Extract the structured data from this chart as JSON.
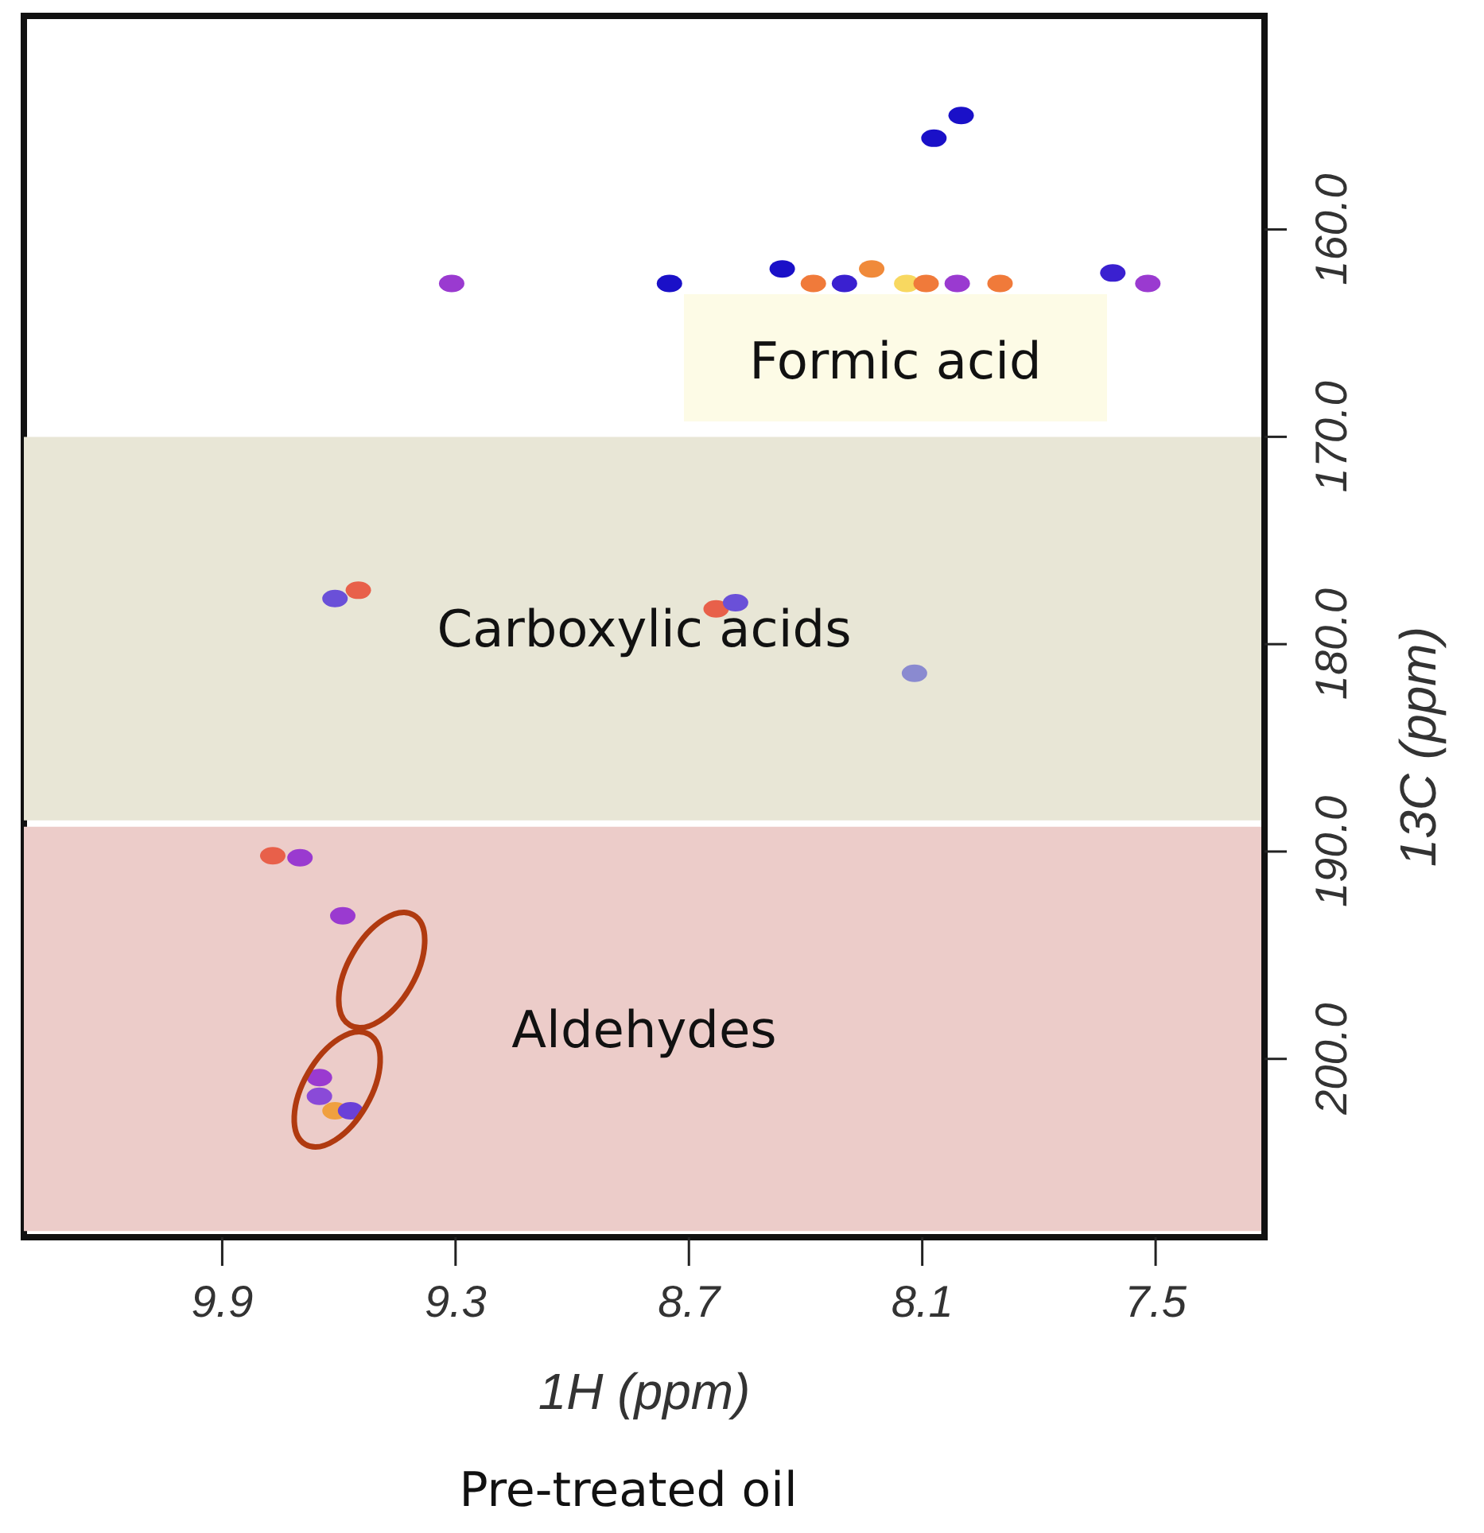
{
  "chart_data": {
    "type": "scatter",
    "xlabel": "1H (ppm)",
    "ylabel": "13C (ppm)",
    "x": [
      8.0,
      8.07,
      9.31,
      8.75,
      8.46,
      8.38,
      8.3,
      8.23,
      8.14,
      8.09,
      8.01,
      7.9,
      7.61,
      7.52,
      9.55,
      9.61,
      8.63,
      8.58,
      8.12,
      9.77,
      9.7,
      9.59,
      9.65,
      9.65,
      9.61,
      9.57
    ],
    "values": [
      154.5,
      155.6,
      162.6,
      162.6,
      161.9,
      162.6,
      162.6,
      161.9,
      162.6,
      162.6,
      162.6,
      162.6,
      162.1,
      162.6,
      177.4,
      177.8,
      178.3,
      178.0,
      181.4,
      190.2,
      190.3,
      193.1,
      200.9,
      201.8,
      202.5,
      202.5
    ],
    "colors": [
      "#1a10c8",
      "#1a10c8",
      "#9a3ad0",
      "#1a10c8",
      "#1a10c8",
      "#f07a3a",
      "#3a20d0",
      "#f08a3a",
      "#f8d860",
      "#f07a3a",
      "#9a3ad0",
      "#f07a3a",
      "#3a20d0",
      "#9a3ad0",
      "#e8604a",
      "#6a50d8",
      "#e8604a",
      "#6a50d8",
      "#8a8ad0",
      "#e8604a",
      "#9a3ad0",
      "#9a3ad0",
      "#9a3ad0",
      "#8a4ad8",
      "#f0a040",
      "#6a40d8"
    ],
    "marker": "circle",
    "legend": false,
    "grid": false,
    "xlim": [
      10.41,
      7.22
    ],
    "xticks": [
      9.9,
      9.3,
      8.7,
      8.1,
      7.5
    ],
    "ylim": [
      208.6,
      149.7
    ],
    "yticks": [
      {
        "value": 160,
        "label": "160.0"
      },
      {
        "value": 170,
        "label": "170.0"
      },
      {
        "value": 180,
        "label": "180.0"
      },
      {
        "value": 190,
        "label": "190.0"
      },
      {
        "value": 200,
        "label": "200.0"
      }
    ],
    "bands": [
      {
        "axis": "y",
        "from": 170,
        "to": 188.5,
        "label": "Carboxylic acids",
        "color": "#e8e6d6"
      },
      {
        "axis": "y",
        "from": 188.8,
        "to": 208.3,
        "label": "Aldehydes",
        "color": "#ecccc9"
      }
    ],
    "annotations": [
      "Formic acid",
      "Pre-treated oil"
    ]
  }
}
